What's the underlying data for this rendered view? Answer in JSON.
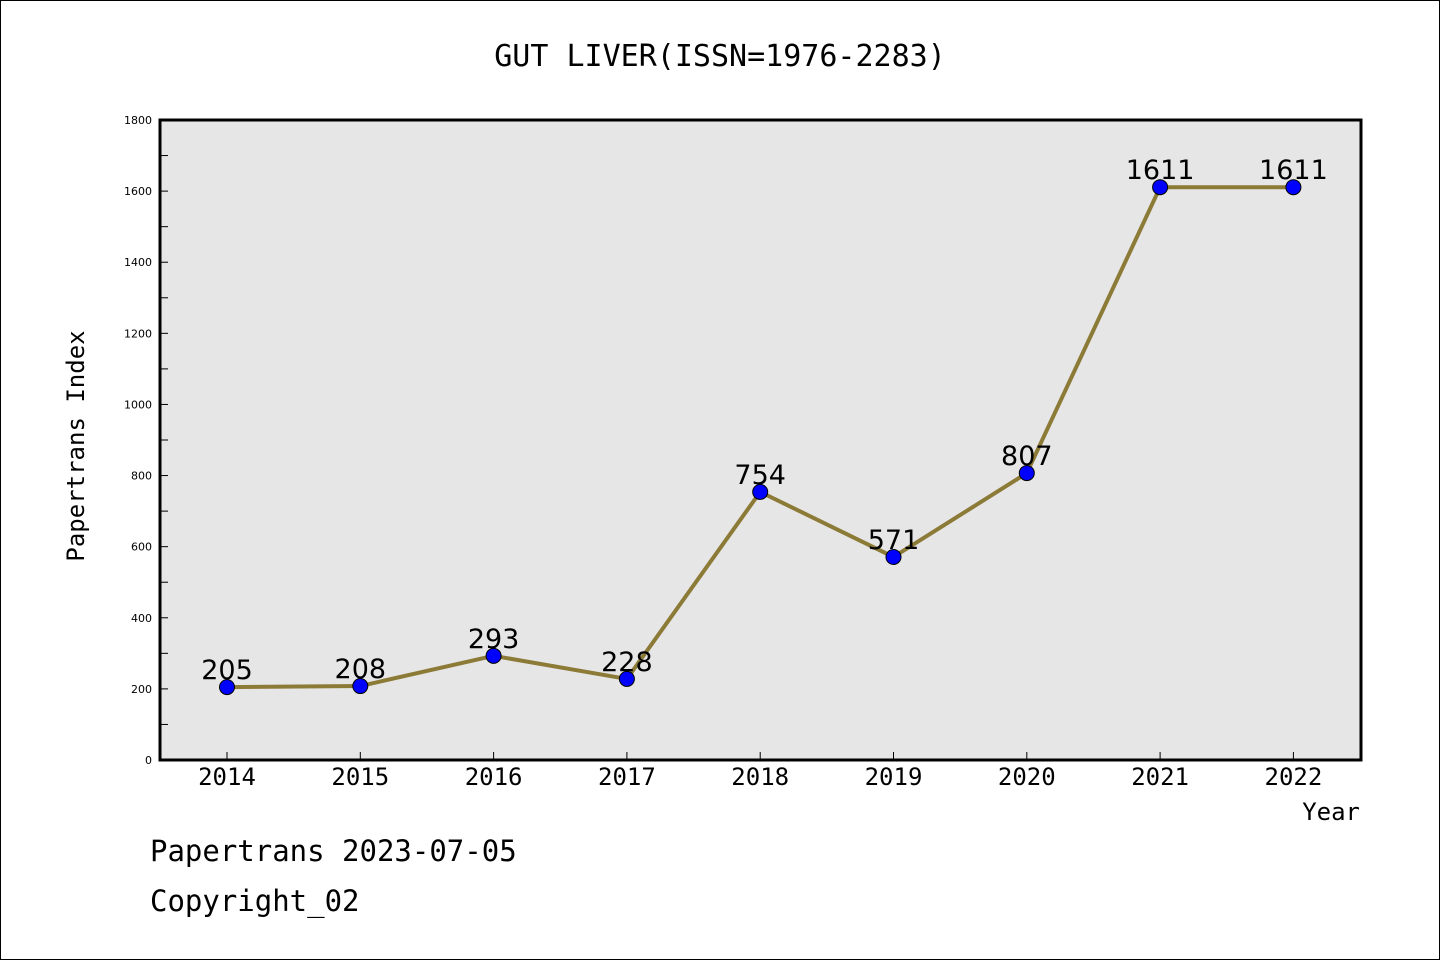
{
  "colors": {
    "line": "#8c7a37",
    "marker": "#0000ff",
    "plot_bg": "#e6e6e6"
  },
  "footer": {
    "source": "Papertrans 2023-07-05",
    "copyright": "Copyright_02"
  },
  "chart_data": {
    "type": "line",
    "title": "GUT LIVER(ISSN=1976-2283)",
    "xlabel": "Year",
    "ylabel": "Papertrans Index",
    "categories": [
      "2014",
      "2015",
      "2016",
      "2017",
      "2018",
      "2019",
      "2020",
      "2021",
      "2022"
    ],
    "series": [
      {
        "values": [
          205,
          208,
          293,
          228,
          754,
          571,
          807,
          1611,
          1611
        ]
      }
    ],
    "data_labels": [
      "205",
      "208",
      "293",
      "228",
      "754",
      "571",
      "807",
      "1611",
      "1611"
    ],
    "ylim": [
      0,
      1800
    ],
    "yticks": [
      0,
      200,
      400,
      600,
      800,
      1000,
      1200,
      1400,
      1600,
      1800
    ],
    "grid": false,
    "legend": "none"
  }
}
